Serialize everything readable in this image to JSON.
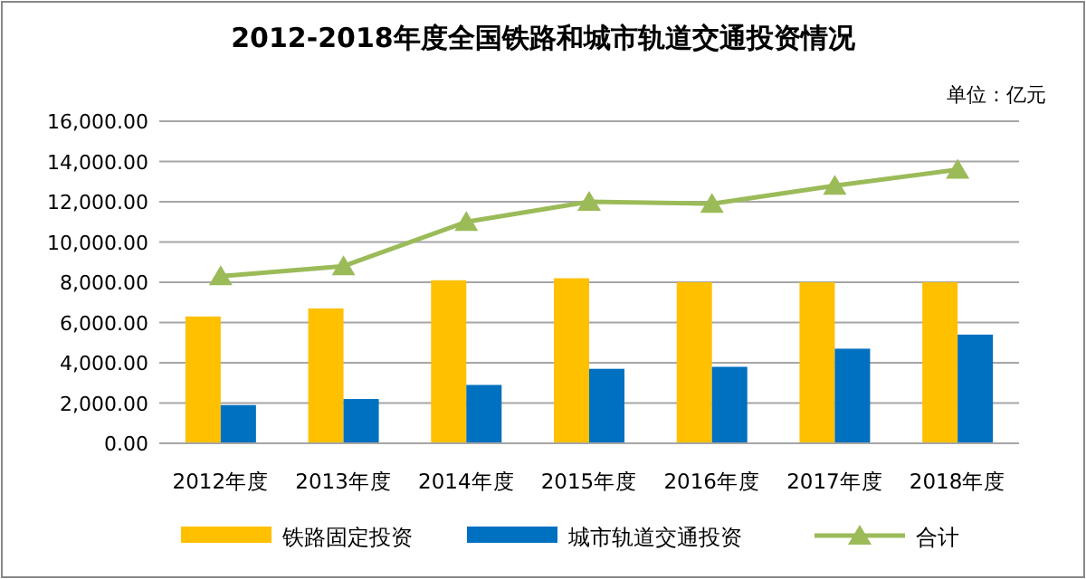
{
  "chart_data": {
    "type": "bar",
    "title": "2012-2018年度全国铁路和城市轨道交通投资情况",
    "annotations": [
      "单位：亿元"
    ],
    "categories": [
      "2012年度",
      "2013年度",
      "2014年度",
      "2015年度",
      "2016年度",
      "2017年度",
      "2018年度"
    ],
    "series": [
      {
        "name": "铁路固定投资",
        "color": "#ffc000",
        "values": [
          6300,
          6700,
          8100,
          8200,
          8000,
          8000,
          8000
        ]
      },
      {
        "name": "城市轨道交通投资",
        "color": "#0070c0",
        "values": [
          1900,
          2200,
          2900,
          3700,
          3800,
          4700,
          5400
        ]
      },
      {
        "name": "合计",
        "type": "line",
        "color": "#9bbb59",
        "marker": "triangle",
        "values": [
          8300,
          8800,
          11000,
          12000,
          11900,
          12800,
          13600
        ]
      }
    ],
    "ylim": [
      0,
      16000
    ],
    "yticks": [
      {
        "value": 0,
        "label": "0.00"
      },
      {
        "value": 2000,
        "label": "2,000.00"
      },
      {
        "value": 4000,
        "label": "4,000.00"
      },
      {
        "value": 6000,
        "label": "6,000.00"
      },
      {
        "value": 8000,
        "label": "8,000.00"
      },
      {
        "value": 10000,
        "label": "10,000.00"
      },
      {
        "value": 12000,
        "label": "12,000.00"
      },
      {
        "value": 14000,
        "label": "14,000.00"
      },
      {
        "value": 16000,
        "label": "16,000.00"
      }
    ],
    "grid": "y",
    "legend": "bottom"
  }
}
